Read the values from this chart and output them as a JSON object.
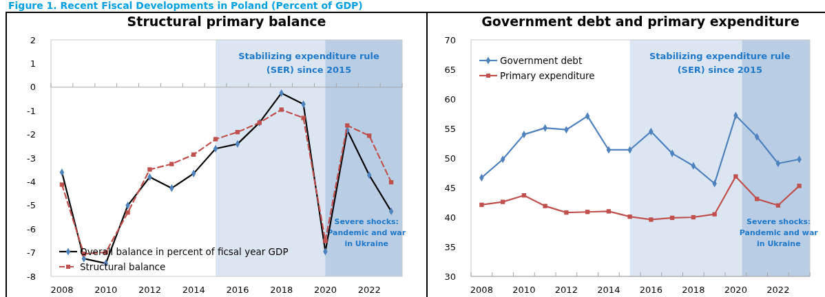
{
  "chart_data": [
    {
      "type": "line",
      "title": "Structural primary balance",
      "annotations": [
        "Figure 1. Recent Fiscal Developments in Poland (Percent of GDP)"
      ],
      "x": [
        2008,
        2009,
        2010,
        2011,
        2012,
        2013,
        2014,
        2015,
        2016,
        2017,
        2018,
        2019,
        2020,
        2021,
        2022,
        2023
      ],
      "xlim": [
        2007.5,
        2023.5
      ],
      "xticks": [
        2008,
        2010,
        2012,
        2014,
        2016,
        2018,
        2020,
        2022,
        {
          "value": 2007.5,
          "label": null
        },
        {
          "value": 2008.5,
          "label": null
        },
        {
          "value": 2009.5,
          "label": null
        },
        {
          "value": 2010.5,
          "label": null
        },
        {
          "value": 2011.5,
          "label": null
        },
        {
          "value": 2012.5,
          "label": null
        },
        {
          "value": 2013.5,
          "label": null
        },
        {
          "value": 2014.5,
          "label": null
        },
        {
          "value": 2015.5,
          "label": null
        },
        {
          "value": 2016.5,
          "label": null
        },
        {
          "value": 2017.5,
          "label": null
        },
        {
          "value": 2018.5,
          "label": null
        },
        {
          "value": 2019.5,
          "label": null
        },
        {
          "value": 2020.5,
          "label": null
        },
        {
          "value": 2021.5,
          "label": null
        },
        {
          "value": 2022.5,
          "label": null
        },
        {
          "value": 2023.5,
          "label": null
        }
      ],
      "series": [
        {
          "name": "Overall balance in percent of ficsal year GDP",
          "color": "#000000",
          "colors": [
            "#4f81bd",
            "#4f81bd",
            "#4f81bd",
            "#4f81bd",
            "#4f81bd",
            "#4f81bd",
            "#4f81bd",
            "#4f81bd",
            "#4f81bd",
            "#4f81bd",
            "#4f81bd",
            "#4f81bd",
            "#4f81bd",
            "#4f81bd",
            "#4f81bd",
            "#4f81bd"
          ],
          "marker": "diamond",
          "line_style": "solid",
          "values": [
            -3.6,
            -7.25,
            -7.45,
            -5.0,
            -3.8,
            -4.27,
            -3.65,
            -2.6,
            -2.4,
            -1.5,
            -0.25,
            -0.72,
            -6.95,
            -1.82,
            -3.72,
            -5.25
          ]
        },
        {
          "name": "Structural balance",
          "color": "#c0504d",
          "marker": "square",
          "line_style": "dashed",
          "values": [
            -4.12,
            -7.05,
            -6.98,
            -5.3,
            -3.48,
            -3.25,
            -2.85,
            -2.2,
            -1.9,
            -1.5,
            -0.95,
            -1.3,
            -6.5,
            -1.62,
            -2.05,
            -4.02
          ]
        }
      ],
      "ylim": [
        -8,
        2
      ],
      "yticks": [
        -8,
        -7,
        -6,
        -5,
        -4,
        -3,
        -2,
        -1,
        0,
        1,
        2
      ],
      "bands": [
        {
          "axis": "x",
          "from": 2015,
          "to": 2023.5,
          "label": "Stabilizing expenditure rule (SER) since 2015",
          "color": "#dce6f2"
        },
        {
          "axis": "x",
          "from": 2020,
          "to": 2023.5,
          "label": "Severe shocks: Pandemic and war in Ukraine",
          "color": "#b9cde5"
        }
      ],
      "legend": "bottom left"
    },
    {
      "type": "line",
      "title": "Government debt and primary expenditure",
      "x": [
        2008,
        2009,
        2010,
        2011,
        2012,
        2013,
        2014,
        2015,
        2016,
        2017,
        2018,
        2019,
        2020,
        2021,
        2022,
        2023
      ],
      "xlim": [
        2007.5,
        2023.5
      ],
      "xticks": [
        2008,
        2010,
        2012,
        2014,
        2016,
        2018,
        2020,
        2022,
        {
          "value": 2007.5,
          "label": null
        },
        {
          "value": 2008.5,
          "label": null
        },
        {
          "value": 2009.5,
          "label": null
        },
        {
          "value": 2010.5,
          "label": null
        },
        {
          "value": 2011.5,
          "label": null
        },
        {
          "value": 2012.5,
          "label": null
        },
        {
          "value": 2013.5,
          "label": null
        },
        {
          "value": 2014.5,
          "label": null
        },
        {
          "value": 2015.5,
          "label": null
        },
        {
          "value": 2016.5,
          "label": null
        },
        {
          "value": 2017.5,
          "label": null
        },
        {
          "value": 2018.5,
          "label": null
        },
        {
          "value": 2019.5,
          "label": null
        },
        {
          "value": 2020.5,
          "label": null
        },
        {
          "value": 2021.5,
          "label": null
        },
        {
          "value": 2022.5,
          "label": null
        },
        {
          "value": 2023.5,
          "label": null
        }
      ],
      "series": [
        {
          "name": "Government debt",
          "color": "#4f81bd",
          "marker": "diamond",
          "line_style": "solid",
          "values": [
            46.7,
            49.8,
            54.0,
            55.1,
            54.8,
            57.1,
            51.4,
            51.4,
            54.5,
            50.8,
            48.7,
            45.7,
            57.2,
            53.6,
            49.1,
            49.8
          ]
        },
        {
          "name": "Primary expenditure",
          "color": "#c0504d",
          "marker": "square",
          "line_style": "solid",
          "values": [
            42.1,
            42.6,
            43.7,
            41.9,
            40.8,
            40.9,
            41.0,
            40.1,
            39.6,
            39.9,
            40.0,
            40.5,
            46.9,
            43.1,
            42.0,
            45.3
          ]
        }
      ],
      "ylim": [
        30,
        70
      ],
      "yticks": [
        30,
        35,
        40,
        45,
        50,
        55,
        60,
        65,
        70
      ],
      "bands": [
        {
          "axis": "x",
          "from": 2015,
          "to": 2023.5,
          "label": "Stabilizing expenditure rule (SER) since 2015",
          "color": "#dce6f2"
        },
        {
          "axis": "x",
          "from": 2020.3,
          "to": 2023.5,
          "label": "Severe shocks: Pandemic and war in Ukraine",
          "color": "#b9cde5"
        }
      ],
      "legend": "top left"
    }
  ]
}
